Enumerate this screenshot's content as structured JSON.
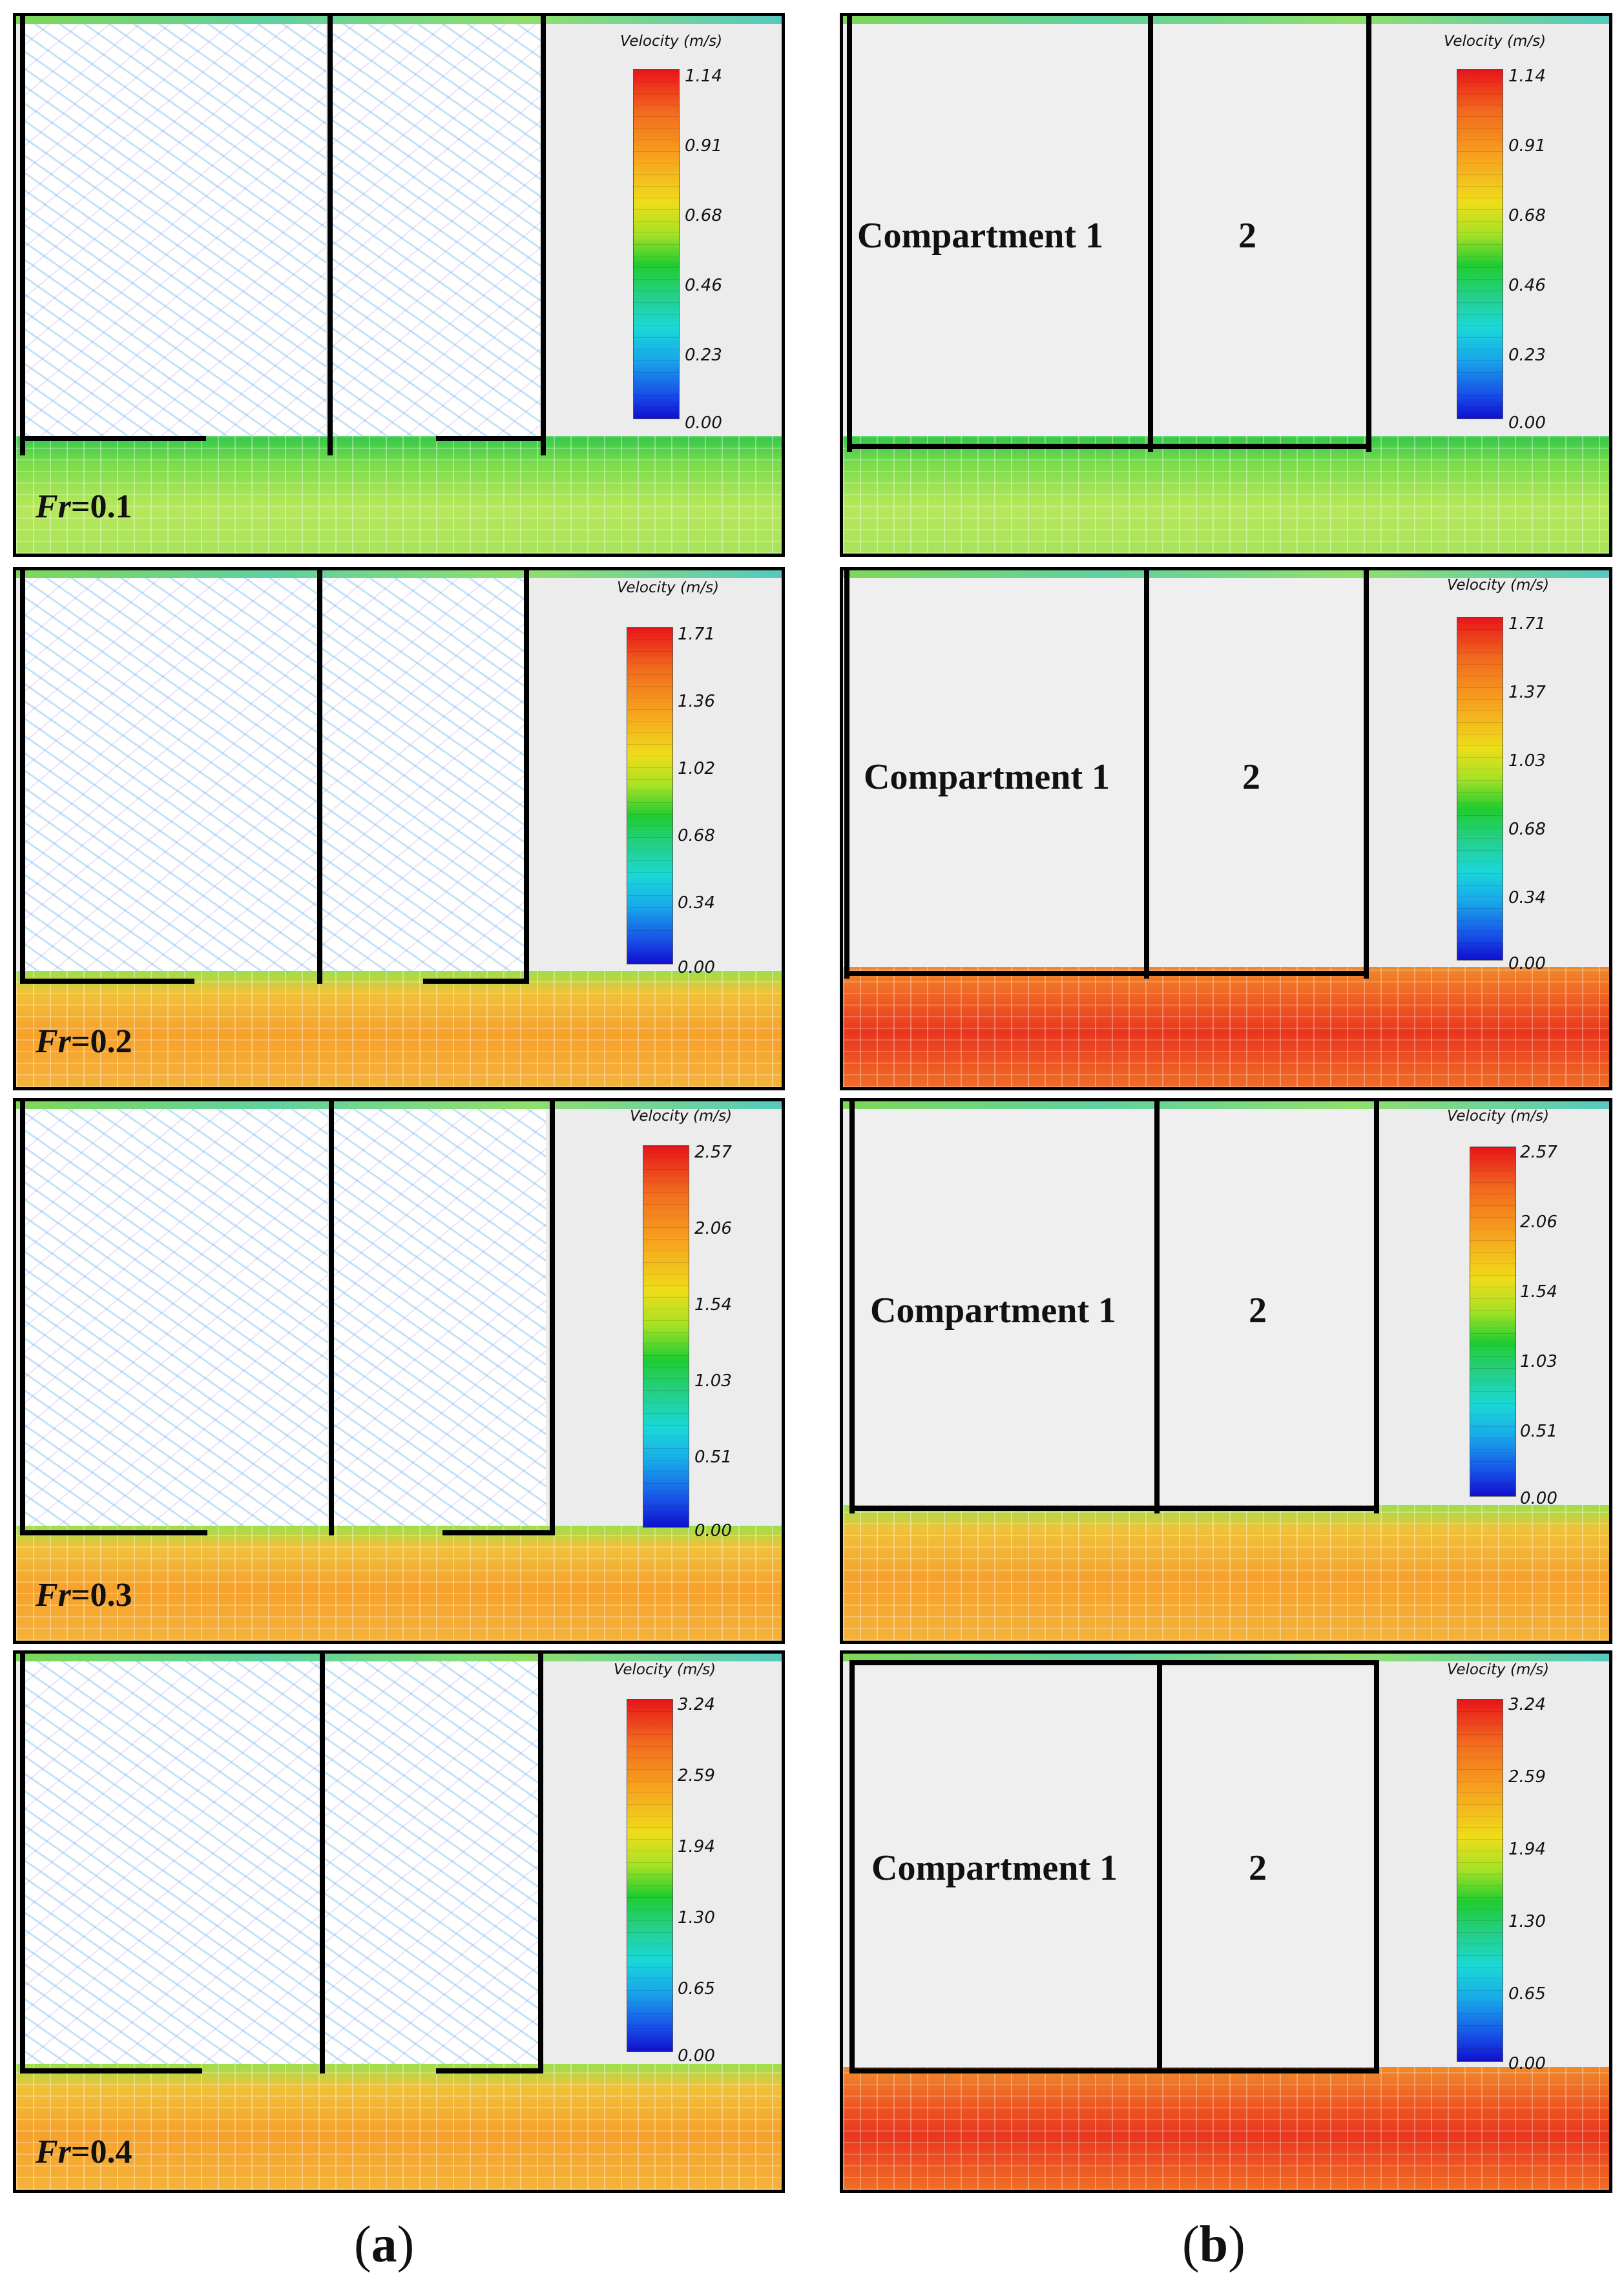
{
  "colorbar_title": "Velocity (m/s)",
  "compartment_label_1": "Compartment 1",
  "compartment_label_2": "2",
  "captions": {
    "a_open": "(",
    "a": "a",
    "a_close": ")",
    "b_open": "(",
    "b": "b",
    "b_close": ")"
  },
  "rows": [
    {
      "fr_symbol": "Fr",
      "fr_value": "=0.1",
      "ticks": [
        "1.14",
        "0.91",
        "0.68",
        "0.46",
        "0.23",
        "0.00"
      ],
      "ticks_b": [
        "1.14",
        "0.91",
        "0.68",
        "0.46",
        "0.23",
        "0.00"
      ]
    },
    {
      "fr_symbol": "Fr",
      "fr_value": "=0.2",
      "ticks": [
        "1.71",
        "1.36",
        "1.02",
        "0.68",
        "0.34",
        "0.00"
      ],
      "ticks_b": [
        "1.71",
        "1.37",
        "1.03",
        "0.68",
        "0.34",
        "0.00"
      ]
    },
    {
      "fr_symbol": "Fr",
      "fr_value": "=0.3",
      "ticks": [
        "2.57",
        "2.06",
        "1.54",
        "1.03",
        "0.51",
        "0.00"
      ],
      "ticks_b": [
        "2.57",
        "2.06",
        "1.54",
        "1.03",
        "0.51",
        "0.00"
      ]
    },
    {
      "fr_symbol": "Fr",
      "fr_value": "=0.4",
      "ticks": [
        "3.24",
        "2.59",
        "1.94",
        "1.30",
        "0.65",
        "0.00"
      ],
      "ticks_b": [
        "3.24",
        "2.59",
        "1.94",
        "1.30",
        "0.65",
        "0.00"
      ]
    }
  ],
  "colors": {
    "wall": "#000000",
    "colorbar_max": "#e8141a",
    "colorbar_min": "#1010d0"
  }
}
